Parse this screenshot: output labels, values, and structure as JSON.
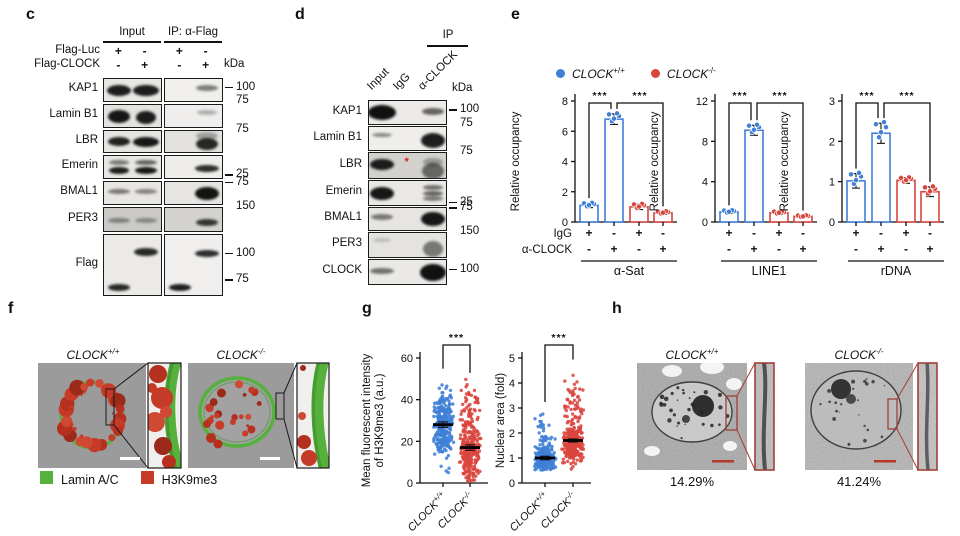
{
  "colors": {
    "blue": "#3f7fd6",
    "red": "#d9453d",
    "green": "#55b03c",
    "legend_red": "#c63a28",
    "inset_border": "#a04038",
    "em_scalebar": "#b5392b"
  },
  "panel_c": {
    "label": "c",
    "headers": [
      "Input",
      "IP: α-Flag"
    ],
    "condition_rows": [
      {
        "label": "Flag-Luc",
        "values": [
          "+",
          "-",
          "+",
          "-"
        ]
      },
      {
        "label": "Flag-CLOCK",
        "values": [
          "-",
          "+",
          "-",
          "+"
        ]
      }
    ],
    "kda": "kDa",
    "rows": [
      {
        "label": "KAP1",
        "h": 22,
        "bg": [
          "#e9e7e3",
          "#f0efec"
        ],
        "markers": [
          {
            "text": "100",
            "fy": 0.45,
            "dash": true
          }
        ],
        "bands": [
          [
            0,
            0,
            0.5,
            0.92,
            11,
            24
          ],
          [
            0,
            1,
            0.5,
            0.92,
            11,
            26
          ],
          [
            1,
            1,
            0.42,
            0.5,
            6,
            22
          ]
        ]
      },
      {
        "label": "Lamin B1",
        "h": 22,
        "bg": [
          "#e5e3df",
          "#efeeec"
        ],
        "markers": [
          {
            "text": "75",
            "fy": -0.12,
            "dash": false
          }
        ],
        "bands": [
          [
            0,
            0,
            0.5,
            0.95,
            13,
            22
          ],
          [
            0,
            1,
            0.55,
            0.92,
            13,
            20
          ],
          [
            1,
            1,
            0.35,
            0.28,
            5,
            20
          ]
        ]
      },
      {
        "label": "LBR",
        "h": 21,
        "bg": [
          "#e7e5e1",
          "#e2e1de"
        ],
        "markers": [
          {
            "text": "75",
            "fy": 0.0,
            "dash": false
          }
        ],
        "bands": [
          [
            0,
            0,
            0.5,
            0.9,
            9,
            22
          ],
          [
            0,
            1,
            0.5,
            0.95,
            10,
            26
          ],
          [
            1,
            1,
            0.62,
            0.88,
            12,
            22
          ],
          [
            1,
            1,
            0.25,
            0.3,
            8,
            22
          ]
        ]
      },
      {
        "label": "Emerin",
        "h": 22,
        "bg": [
          "#e9e7e3",
          "#eeedea"
        ],
        "markers": [
          {
            "text": "25",
            "fy": 0.92,
            "dash": true
          }
        ],
        "bands": [
          [
            0,
            0,
            0.3,
            0.5,
            5,
            20
          ],
          [
            0,
            0,
            0.68,
            0.92,
            7,
            20
          ],
          [
            0,
            1,
            0.3,
            0.6,
            5,
            22
          ],
          [
            0,
            1,
            0.68,
            0.95,
            7,
            22
          ],
          [
            1,
            1,
            0.55,
            0.85,
            7,
            24
          ]
        ]
      },
      {
        "label": "BMAL1",
        "h": 22,
        "bg": [
          "#e8e6e2",
          "#e6e5e2"
        ],
        "markers": [
          {
            "text": "75",
            "fy": 0.08,
            "dash": true
          }
        ],
        "bands": [
          [
            0,
            0,
            0.45,
            0.5,
            5,
            22
          ],
          [
            0,
            1,
            0.45,
            0.45,
            5,
            22
          ],
          [
            1,
            1,
            0.5,
            0.97,
            13,
            24
          ]
        ]
      },
      {
        "label": "PER3",
        "h": 23,
        "bg": [
          "#cbcac7",
          "#d4d3d0"
        ],
        "markers": [
          {
            "text": "150",
            "fy": 0.0,
            "dash": false
          }
        ],
        "bands": [
          [
            0,
            0,
            0.55,
            0.4,
            5,
            22
          ],
          [
            0,
            1,
            0.55,
            0.35,
            5,
            22
          ],
          [
            1,
            1,
            0.62,
            0.8,
            7,
            22
          ]
        ]
      },
      {
        "label": "Flag",
        "h": 60,
        "bg": [
          "#eceae7",
          "#f0efed"
        ],
        "markers": [
          {
            "text": "100",
            "fy": 0.33,
            "dash": true
          },
          {
            "text": "75",
            "fy": 0.77,
            "dash": true
          }
        ],
        "bands": [
          [
            0,
            0,
            0.88,
            0.88,
            7,
            22
          ],
          [
            0,
            1,
            0.28,
            0.88,
            8,
            24
          ],
          [
            1,
            0,
            0.88,
            0.92,
            7,
            22
          ],
          [
            1,
            1,
            0.3,
            0.85,
            7,
            24
          ]
        ]
      }
    ]
  },
  "panel_d": {
    "label": "d",
    "ip_header": "IP",
    "lane_labels": [
      "Input",
      "IgG",
      "α-CLOCK"
    ],
    "kda": "kDa",
    "rows": [
      {
        "label": "KAP1",
        "h": 23,
        "bg": [
          "#eceae7"
        ],
        "markers": [
          {
            "text": "100",
            "fy": 0.45,
            "dash": true
          }
        ],
        "bands": [
          [
            0,
            0,
            0.5,
            0.98,
            15,
            28
          ],
          [
            0,
            2,
            0.45,
            0.6,
            7,
            22
          ]
        ]
      },
      {
        "label": "Lamin B1",
        "h": 23,
        "bg": [
          "#efeeeb"
        ],
        "markers": [
          {
            "text": "75",
            "fy": -0.1,
            "dash": false
          }
        ],
        "bands": [
          [
            0,
            0,
            0.35,
            0.45,
            4,
            20
          ],
          [
            0,
            2,
            0.6,
            0.92,
            15,
            24
          ]
        ]
      },
      {
        "label": "LBR",
        "h": 25,
        "bg": [
          "#d2d1ce"
        ],
        "markers": [
          {
            "text": "75",
            "fy": 0.0,
            "dash": false
          }
        ],
        "asterisk": {
          "lane": 1,
          "fy": 0.38,
          "text": "*"
        },
        "bands": [
          [
            0,
            0,
            0.45,
            0.92,
            11,
            24
          ],
          [
            0,
            2,
            0.7,
            0.55,
            16,
            22
          ],
          [
            0,
            2,
            0.35,
            0.3,
            8,
            20
          ]
        ]
      },
      {
        "label": "Emerin",
        "h": 24,
        "bg": [
          "#eae8e5"
        ],
        "markers": [
          {
            "text": "25",
            "fy": 0.95,
            "dash": true
          }
        ],
        "bands": [
          [
            0,
            0,
            0.5,
            0.95,
            13,
            24
          ],
          [
            0,
            2,
            0.25,
            0.55,
            5,
            20
          ],
          [
            0,
            2,
            0.5,
            0.6,
            5,
            20
          ],
          [
            0,
            2,
            0.74,
            0.5,
            5,
            20
          ]
        ]
      },
      {
        "label": "BMAL1",
        "h": 22,
        "bg": [
          "#e7e5e2"
        ],
        "markers": [
          {
            "text": "75",
            "fy": 0.05,
            "dash": true
          }
        ],
        "bands": [
          [
            0,
            0,
            0.42,
            0.5,
            6,
            22
          ],
          [
            0,
            2,
            0.5,
            0.95,
            14,
            24
          ]
        ]
      },
      {
        "label": "PER3",
        "h": 24,
        "bg": [
          "#e4e3e0"
        ],
        "markers": [
          {
            "text": "150",
            "fy": 0.0,
            "dash": false
          }
        ],
        "bands": [
          [
            0,
            0,
            0.3,
            0.18,
            4,
            18
          ],
          [
            0,
            2,
            0.65,
            0.5,
            16,
            20
          ]
        ]
      },
      {
        "label": "CLOCK",
        "h": 24,
        "bg": [
          "#eae9e6"
        ],
        "markers": [
          {
            "text": "100",
            "fy": 0.45,
            "dash": true
          }
        ],
        "bands": [
          [
            0,
            0,
            0.45,
            0.55,
            6,
            24
          ],
          [
            0,
            2,
            0.5,
            0.98,
            17,
            26
          ]
        ]
      }
    ]
  },
  "panel_e": {
    "label": "e",
    "legend": [
      {
        "color": "blue",
        "base": "CLOCK",
        "sup": "+/+"
      },
      {
        "color": "red",
        "base": "CLOCK",
        "sup": "-/-"
      }
    ]
  },
  "panel_f": {
    "label": "f",
    "titles": [
      {
        "base": "CLOCK",
        "sup": "+/+"
      },
      {
        "base": "CLOCK",
        "sup": "-/-"
      }
    ],
    "legend": [
      {
        "label": "Lamin A/C",
        "color": "#55b03c"
      },
      {
        "label": "H3K9me3",
        "color": "#c63a28"
      }
    ]
  },
  "panel_g": {
    "label": "g"
  },
  "panel_h": {
    "label": "h",
    "titles": [
      {
        "base": "CLOCK",
        "sup": "+/+"
      },
      {
        "base": "CLOCK",
        "sup": "-/-"
      }
    ],
    "percentages": [
      "14.29%",
      "41.24%"
    ]
  },
  "chart_data": [
    {
      "id": "alpha-sat",
      "type": "bar",
      "group_label": "α-Sat",
      "ylabel": "Relative occupancy",
      "ylim": [
        0,
        8
      ],
      "yticks": [
        0,
        2,
        4,
        6,
        8
      ],
      "show_row_labels": true,
      "bars": [
        {
          "color": "blue",
          "value": 1.1,
          "err": 0.15
        },
        {
          "color": "blue",
          "value": 6.8,
          "err": 0.35
        },
        {
          "color": "red",
          "value": 1.0,
          "err": 0.18
        },
        {
          "color": "red",
          "value": 0.6,
          "err": 0.1
        }
      ],
      "rows": [
        {
          "label": "IgG",
          "values": [
            "+",
            "-",
            "+",
            "-"
          ]
        },
        {
          "label": "α-CLOCK",
          "values": [
            "-",
            "+",
            "-",
            "+"
          ]
        }
      ],
      "sig": [
        {
          "from": 0,
          "to": 1,
          "label": "***"
        },
        {
          "from": 1,
          "to": 3,
          "label": "***"
        }
      ]
    },
    {
      "id": "line1",
      "type": "bar",
      "group_label": "LINE1",
      "ylabel": "Relative occupancy",
      "ylim": [
        0,
        12
      ],
      "yticks": [
        0,
        4,
        8,
        12
      ],
      "show_row_labels": false,
      "bars": [
        {
          "color": "blue",
          "value": 1.0,
          "err": 0.15
        },
        {
          "color": "blue",
          "value": 9.1,
          "err": 0.5
        },
        {
          "color": "red",
          "value": 0.9,
          "err": 0.15
        },
        {
          "color": "red",
          "value": 0.55,
          "err": 0.1
        }
      ],
      "rows": [
        {
          "label": "IgG",
          "values": [
            "+",
            "-",
            "+",
            "-"
          ]
        },
        {
          "label": "α-CLOCK",
          "values": [
            "-",
            "+",
            "-",
            "+"
          ]
        }
      ],
      "sig": [
        {
          "from": 0,
          "to": 1,
          "label": "***"
        },
        {
          "from": 1,
          "to": 3,
          "label": "***"
        }
      ]
    },
    {
      "id": "rdna",
      "type": "bar",
      "group_label": "rDNA",
      "ylabel": "Relative occupancy",
      "ylim": [
        0,
        3
      ],
      "yticks": [
        0,
        1,
        2,
        3
      ],
      "show_row_labels": false,
      "bars": [
        {
          "color": "blue",
          "value": 1.02,
          "err": 0.18
        },
        {
          "color": "blue",
          "value": 2.2,
          "err": 0.25
        },
        {
          "color": "red",
          "value": 1.03,
          "err": 0.07
        },
        {
          "color": "red",
          "value": 0.75,
          "err": 0.12
        }
      ],
      "rows": [
        {
          "label": "IgG",
          "values": [
            "+",
            "-",
            "+",
            "-"
          ]
        },
        {
          "label": "α-CLOCK",
          "values": [
            "-",
            "+",
            "-",
            "+"
          ]
        }
      ],
      "sig": [
        {
          "from": 0,
          "to": 1,
          "label": "***"
        },
        {
          "from": 1,
          "to": 3,
          "label": "***"
        }
      ]
    },
    {
      "id": "h3k9me3-intensity",
      "type": "jitter",
      "sig": "***",
      "ylabel_lines": [
        "Mean fluorescent intensity",
        "of H3K9me3 (a.u.)"
      ],
      "ylim": [
        0,
        60
      ],
      "yticks": [
        0,
        20,
        40,
        60
      ],
      "groups": [
        {
          "label_base": "CLOCK",
          "label_sup": "+/+",
          "color": "blue",
          "mean": 28,
          "sem": 1.3,
          "n": 260,
          "min": 3,
          "max": 52,
          "clusters": [
            [
              28,
              8,
              1
            ]
          ]
        },
        {
          "label_base": "CLOCK",
          "label_sup": "-/-",
          "color": "red",
          "mean": 17,
          "sem": 1.3,
          "n": 300,
          "min": 0.5,
          "max": 50,
          "clusters": [
            [
              14,
              7,
              0.78
            ],
            [
              33,
              7,
              0.22
            ]
          ]
        }
      ]
    },
    {
      "id": "nuclear-area",
      "type": "jitter",
      "sig": "***",
      "ylabel_lines": [
        "Nuclear area (fold)"
      ],
      "ylim": [
        0,
        5
      ],
      "yticks": [
        0,
        1,
        2,
        3,
        4,
        5
      ],
      "groups": [
        {
          "label_base": "CLOCK",
          "label_sup": "+/+",
          "color": "blue",
          "mean": 1.0,
          "sem": 0.07,
          "n": 240,
          "min": 0.5,
          "max": 3.0,
          "clusters": [
            [
              1.0,
              0.28,
              0.9
            ],
            [
              2.1,
              0.35,
              0.1
            ]
          ]
        },
        {
          "label_base": "CLOCK",
          "label_sup": "-/-",
          "color": "red",
          "mean": 1.7,
          "sem": 0.06,
          "n": 300,
          "min": 0.5,
          "max": 4.7,
          "clusters": [
            [
              1.55,
              0.38,
              0.82
            ],
            [
              3.1,
              0.65,
              0.18
            ]
          ]
        }
      ]
    }
  ]
}
